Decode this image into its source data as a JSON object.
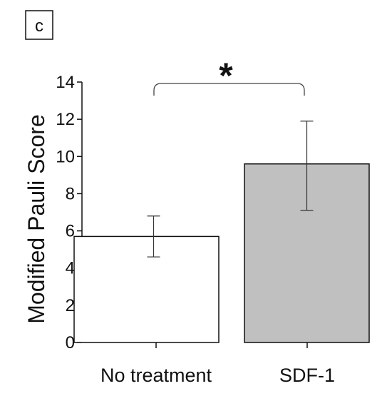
{
  "panel_label": "c",
  "chart_data": {
    "type": "bar",
    "categories": [
      "No treatment",
      "SDF-1"
    ],
    "values": [
      5.7,
      9.6
    ],
    "error_low": [
      4.6,
      7.1
    ],
    "error_high": [
      6.8,
      11.9
    ],
    "bar_colors": [
      "#ffffff",
      "#c0c0c0"
    ],
    "ylabel": "Modified Pauli Score",
    "xlabel": "",
    "ylim": [
      0,
      14
    ],
    "yticks": [
      "0",
      "2",
      "4",
      "6",
      "8",
      "10",
      "12",
      "14"
    ],
    "grid": false,
    "significance": {
      "between": [
        "No treatment",
        "SDF-1"
      ],
      "marker": "*"
    }
  }
}
